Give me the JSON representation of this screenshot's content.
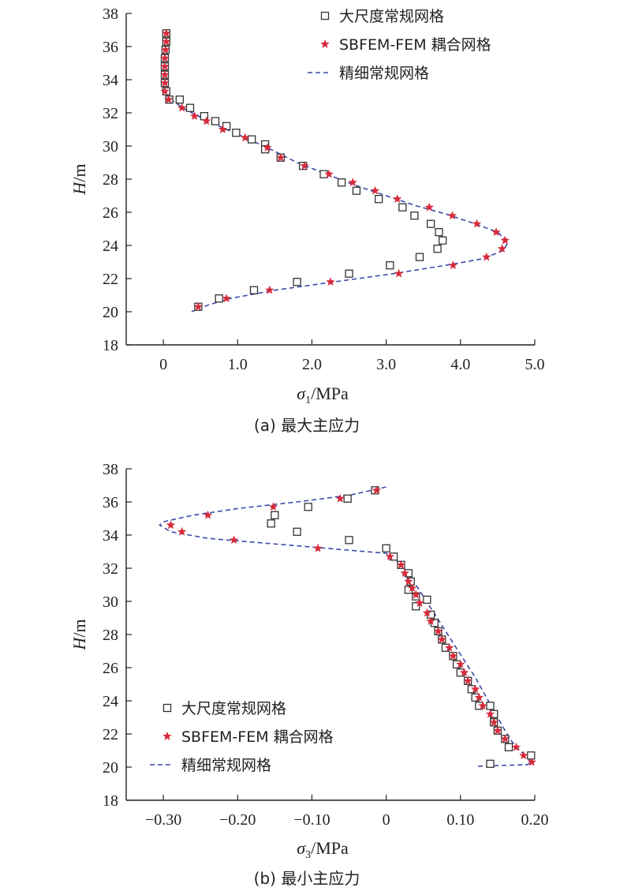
{
  "chart_data": [
    {
      "type": "scatter",
      "caption": "(a) 最大主应力",
      "ylabel": "H/m",
      "xlabel": "σ1/MPa",
      "xlim": [
        -0.5,
        5.0
      ],
      "ylim": [
        18,
        38
      ],
      "xticks": [
        "0",
        "1.0",
        "2.0",
        "3.0",
        "4.0",
        "5.0"
      ],
      "xtick_values": [
        0,
        1,
        2,
        3,
        4,
        5
      ],
      "yticks": [
        "18",
        "20",
        "22",
        "24",
        "26",
        "28",
        "30",
        "32",
        "34",
        "36",
        "38"
      ],
      "ytick_values": [
        18,
        20,
        22,
        24,
        26,
        28,
        30,
        32,
        34,
        36,
        38
      ],
      "legend": "top-right",
      "series": [
        {
          "name": "大尺度常规网格",
          "marker": "square",
          "color": "#333333",
          "points": [
            [
              0.04,
              36.8
            ],
            [
              0.04,
              36.3
            ],
            [
              0.03,
              35.8
            ],
            [
              0.02,
              35.3
            ],
            [
              0.02,
              34.8
            ],
            [
              0.02,
              34.3
            ],
            [
              0.02,
              33.8
            ],
            [
              0.04,
              33.3
            ],
            [
              0.08,
              32.8
            ],
            [
              0.22,
              32.8
            ],
            [
              0.36,
              32.3
            ],
            [
              0.55,
              31.8
            ],
            [
              0.7,
              31.5
            ],
            [
              0.85,
              31.2
            ],
            [
              0.98,
              30.8
            ],
            [
              1.19,
              30.4
            ],
            [
              1.37,
              30.1
            ],
            [
              1.37,
              29.8
            ],
            [
              1.58,
              29.3
            ],
            [
              1.88,
              28.8
            ],
            [
              2.16,
              28.3
            ],
            [
              2.4,
              27.8
            ],
            [
              2.6,
              27.3
            ],
            [
              2.9,
              26.8
            ],
            [
              3.22,
              26.3
            ],
            [
              3.38,
              25.8
            ],
            [
              3.6,
              25.3
            ],
            [
              3.71,
              24.8
            ],
            [
              3.76,
              24.3
            ],
            [
              3.69,
              23.8
            ],
            [
              3.45,
              23.3
            ],
            [
              3.05,
              22.8
            ],
            [
              2.5,
              22.3
            ],
            [
              1.8,
              21.8
            ],
            [
              1.22,
              21.3
            ],
            [
              0.75,
              20.8
            ],
            [
              0.47,
              20.3
            ]
          ]
        },
        {
          "name": "SBFEM-FEM 耦合网格",
          "marker": "star",
          "color": "#d62b3c",
          "points": [
            [
              0.04,
              36.8
            ],
            [
              0.04,
              36.3
            ],
            [
              0.03,
              35.8
            ],
            [
              0.02,
              35.3
            ],
            [
              0.02,
              34.8
            ],
            [
              0.02,
              34.3
            ],
            [
              0.02,
              33.8
            ],
            [
              0.02,
              33.3
            ],
            [
              0.07,
              32.8
            ],
            [
              0.25,
              32.3
            ],
            [
              0.42,
              31.8
            ],
            [
              0.58,
              31.5
            ],
            [
              0.8,
              31.0
            ],
            [
              1.1,
              30.5
            ],
            [
              1.4,
              29.9
            ],
            [
              1.58,
              29.3
            ],
            [
              1.9,
              28.8
            ],
            [
              2.23,
              28.3
            ],
            [
              2.55,
              27.8
            ],
            [
              2.85,
              27.3
            ],
            [
              3.15,
              26.8
            ],
            [
              3.58,
              26.3
            ],
            [
              3.89,
              25.8
            ],
            [
              4.22,
              25.3
            ],
            [
              4.48,
              24.8
            ],
            [
              4.6,
              24.3
            ],
            [
              4.56,
              23.8
            ],
            [
              4.35,
              23.3
            ],
            [
              3.9,
              22.8
            ],
            [
              3.17,
              22.3
            ],
            [
              2.25,
              21.8
            ],
            [
              1.43,
              21.3
            ],
            [
              0.85,
              20.8
            ],
            [
              0.47,
              20.3
            ]
          ]
        },
        {
          "name": "精细常规网格",
          "marker": "dashed-line",
          "color": "#3a4aa8",
          "points": [
            [
              0.04,
              37.0
            ],
            [
              0.02,
              36.0
            ],
            [
              0.01,
              35.0
            ],
            [
              0.0,
              34.0
            ],
            [
              0.01,
              33.4
            ],
            [
              0.1,
              32.8
            ],
            [
              0.3,
              32.2
            ],
            [
              0.6,
              31.5
            ],
            [
              1.0,
              30.7
            ],
            [
              1.4,
              29.9
            ],
            [
              1.8,
              29.0
            ],
            [
              2.2,
              28.3
            ],
            [
              2.6,
              27.6
            ],
            [
              3.0,
              27.0
            ],
            [
              3.4,
              26.4
            ],
            [
              3.8,
              25.9
            ],
            [
              4.2,
              25.3
            ],
            [
              4.5,
              24.8
            ],
            [
              4.64,
              24.2
            ],
            [
              4.58,
              23.7
            ],
            [
              4.3,
              23.2
            ],
            [
              3.8,
              22.8
            ],
            [
              3.1,
              22.3
            ],
            [
              2.3,
              21.8
            ],
            [
              1.5,
              21.3
            ],
            [
              0.9,
              20.8
            ],
            [
              0.6,
              20.4
            ],
            [
              0.38,
              20.0
            ]
          ]
        }
      ]
    },
    {
      "type": "scatter",
      "caption": "(b) 最小主应力",
      "ylabel": "H/m",
      "xlabel": "σ3/MPa",
      "xlim": [
        -0.35,
        0.2
      ],
      "ylim": [
        18,
        38
      ],
      "xticks": [
        "−0.30",
        "−0.20",
        "−0.10",
        "0",
        "0.10",
        "0.20"
      ],
      "xtick_values": [
        -0.3,
        -0.2,
        -0.1,
        0,
        0.1,
        0.2
      ],
      "yticks": [
        "18",
        "20",
        "22",
        "24",
        "26",
        "28",
        "30",
        "32",
        "34",
        "36",
        "38"
      ],
      "ytick_values": [
        18,
        20,
        22,
        24,
        26,
        28,
        30,
        32,
        34,
        36,
        38
      ],
      "legend": "bottom-left",
      "series": [
        {
          "name": "大尺度常规网格",
          "marker": "square",
          "color": "#333333",
          "points": [
            [
              -0.015,
              36.7
            ],
            [
              -0.052,
              36.2
            ],
            [
              -0.15,
              35.2
            ],
            [
              -0.155,
              34.7
            ],
            [
              -0.105,
              35.7
            ],
            [
              -0.12,
              34.2
            ],
            [
              -0.05,
              33.7
            ],
            [
              0.0,
              33.2
            ],
            [
              0.01,
              32.7
            ],
            [
              0.02,
              32.2
            ],
            [
              0.03,
              31.7
            ],
            [
              0.033,
              31.2
            ],
            [
              0.03,
              30.7
            ],
            [
              0.04,
              30.3
            ],
            [
              0.055,
              30.1
            ],
            [
              0.04,
              29.7
            ],
            [
              0.06,
              29.2
            ],
            [
              0.065,
              28.7
            ],
            [
              0.07,
              28.2
            ],
            [
              0.075,
              27.7
            ],
            [
              0.08,
              27.2
            ],
            [
              0.09,
              26.7
            ],
            [
              0.095,
              26.2
            ],
            [
              0.1,
              25.7
            ],
            [
              0.11,
              25.2
            ],
            [
              0.115,
              24.7
            ],
            [
              0.12,
              24.2
            ],
            [
              0.125,
              23.7
            ],
            [
              0.14,
              23.7
            ],
            [
              0.145,
              23.2
            ],
            [
              0.145,
              22.7
            ],
            [
              0.15,
              22.2
            ],
            [
              0.16,
              21.7
            ],
            [
              0.165,
              21.2
            ],
            [
              0.195,
              20.7
            ],
            [
              0.14,
              20.2
            ]
          ]
        },
        {
          "name": "SBFEM-FEM 耦合网格",
          "marker": "star",
          "color": "#d62b3c",
          "points": [
            [
              -0.013,
              36.7
            ],
            [
              -0.062,
              36.2
            ],
            [
              -0.152,
              35.7
            ],
            [
              -0.24,
              35.2
            ],
            [
              -0.29,
              34.6
            ],
            [
              -0.275,
              34.2
            ],
            [
              -0.205,
              33.7
            ],
            [
              -0.092,
              33.2
            ],
            [
              0.005,
              32.7
            ],
            [
              0.02,
              32.2
            ],
            [
              0.025,
              31.7
            ],
            [
              0.03,
              31.2
            ],
            [
              0.035,
              30.8
            ],
            [
              0.04,
              30.4
            ],
            [
              0.045,
              29.9
            ],
            [
              0.055,
              29.3
            ],
            [
              0.06,
              28.8
            ],
            [
              0.07,
              28.2
            ],
            [
              0.075,
              27.7
            ],
            [
              0.085,
              27.2
            ],
            [
              0.09,
              26.7
            ],
            [
              0.1,
              26.2
            ],
            [
              0.105,
              25.7
            ],
            [
              0.11,
              25.2
            ],
            [
              0.12,
              24.7
            ],
            [
              0.125,
              24.2
            ],
            [
              0.13,
              23.7
            ],
            [
              0.14,
              23.2
            ],
            [
              0.145,
              22.7
            ],
            [
              0.15,
              22.2
            ],
            [
              0.16,
              21.7
            ],
            [
              0.175,
              21.2
            ],
            [
              0.185,
              20.7
            ],
            [
              0.196,
              20.3
            ]
          ]
        },
        {
          "name": "精细常规网格",
          "marker": "dashed-line",
          "color": "#3a4aa8",
          "points": [
            [
              0.0,
              36.9
            ],
            [
              -0.05,
              36.4
            ],
            [
              -0.12,
              36.0
            ],
            [
              -0.2,
              35.6
            ],
            [
              -0.26,
              35.2
            ],
            [
              -0.3,
              34.8
            ],
            [
              -0.305,
              34.6
            ],
            [
              -0.29,
              34.2
            ],
            [
              -0.24,
              33.8
            ],
            [
              -0.16,
              33.5
            ],
            [
              -0.08,
              33.2
            ],
            [
              0.0,
              32.9
            ],
            [
              0.01,
              32.6
            ],
            [
              0.02,
              32.2
            ],
            [
              0.03,
              31.7
            ],
            [
              0.04,
              31.0
            ],
            [
              0.05,
              30.3
            ],
            [
              0.06,
              29.6
            ],
            [
              0.07,
              28.9
            ],
            [
              0.08,
              28.2
            ],
            [
              0.09,
              27.5
            ],
            [
              0.1,
              26.8
            ],
            [
              0.11,
              26.1
            ],
            [
              0.12,
              25.4
            ],
            [
              0.13,
              24.6
            ],
            [
              0.14,
              23.8
            ],
            [
              0.15,
              23.0
            ],
            [
              0.16,
              22.2
            ],
            [
              0.17,
              21.5
            ],
            [
              0.18,
              21.0
            ],
            [
              0.19,
              20.6
            ],
            [
              0.195,
              20.3
            ],
            [
              0.19,
              20.15
            ],
            [
              0.12,
              20.05
            ]
          ]
        }
      ]
    }
  ]
}
